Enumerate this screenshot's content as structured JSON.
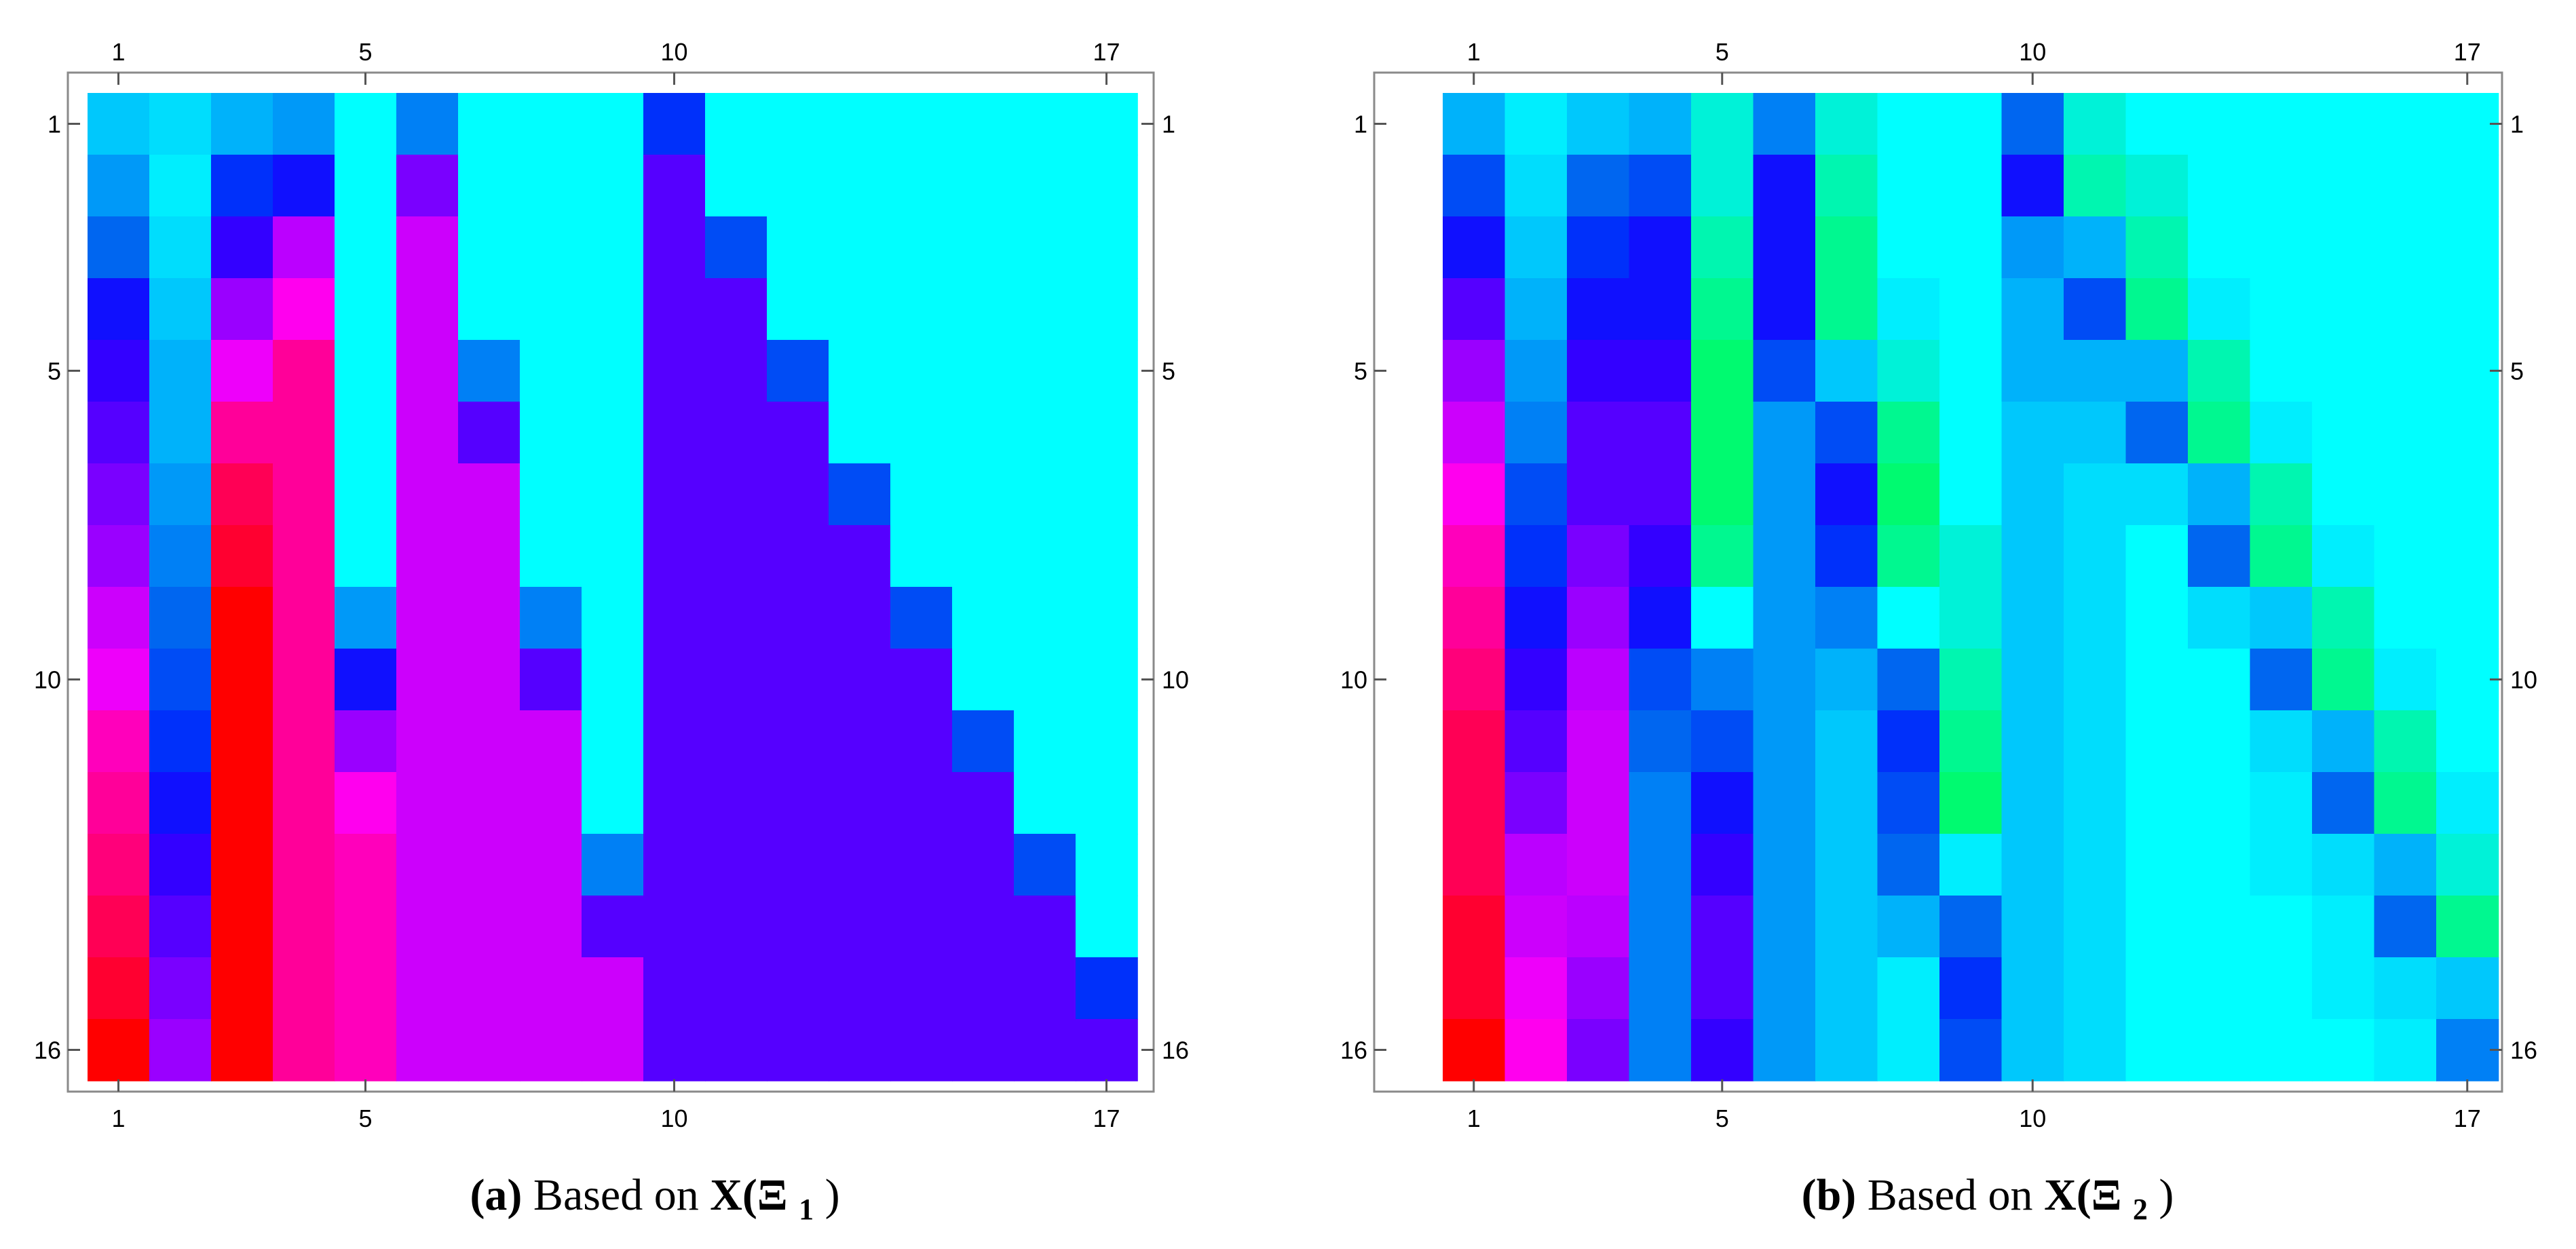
{
  "palette": [
    "#00ffff",
    "#00eefe",
    "#00ddfd",
    "#00c8fc",
    "#00b2fa",
    "#0099f8",
    "#0080f5",
    "#0066f0",
    "#004cf5",
    "#0030fa",
    "#1010fe",
    "#3300ff",
    "#5500ff",
    "#7a00ff",
    "#9a00ff",
    "#bb00ff",
    "#cc00fc",
    "#ee00fa",
    "#ff00ee",
    "#ff00bb",
    "#ff0099",
    "#ff007a",
    "#ff0055",
    "#ff0030",
    "#ff0000",
    "#00f2d8",
    "#00f6b0",
    "#00f890",
    "#00fa70"
  ],
  "chart_data": [
    {
      "type": "heatmap",
      "caption_label": "(a)",
      "caption_text": "Based on ",
      "caption_math": "X(Ξ",
      "caption_sub": "1",
      "caption_close": ")",
      "x_ticks": [
        "1",
        "5",
        "10",
        "17"
      ],
      "y_ticks": [
        "1",
        "5",
        "10",
        "16"
      ],
      "n_cols": 17,
      "n_rows": 16,
      "cells": [
        [
          3,
          2,
          4,
          5,
          0,
          6,
          0,
          0,
          0,
          9,
          0,
          0,
          0,
          0,
          0,
          0,
          0
        ],
        [
          5,
          1,
          9,
          10,
          0,
          13,
          0,
          0,
          0,
          12,
          0,
          0,
          0,
          0,
          0,
          0,
          0
        ],
        [
          7,
          2,
          11,
          15,
          0,
          16,
          0,
          0,
          0,
          12,
          8,
          0,
          0,
          0,
          0,
          0,
          0
        ],
        [
          10,
          3,
          14,
          18,
          0,
          16,
          0,
          0,
          0,
          12,
          12,
          0,
          0,
          0,
          0,
          0,
          0
        ],
        [
          11,
          4,
          17,
          20,
          0,
          16,
          6,
          0,
          0,
          12,
          12,
          8,
          0,
          0,
          0,
          0,
          0
        ],
        [
          12,
          4,
          20,
          20,
          0,
          16,
          12,
          0,
          0,
          12,
          12,
          12,
          0,
          0,
          0,
          0,
          0
        ],
        [
          13,
          5,
          22,
          20,
          0,
          16,
          16,
          0,
          0,
          12,
          12,
          12,
          8,
          0,
          0,
          0,
          0
        ],
        [
          14,
          6,
          23,
          20,
          0,
          16,
          16,
          0,
          0,
          12,
          12,
          12,
          12,
          0,
          0,
          0,
          0
        ],
        [
          16,
          7,
          24,
          20,
          5,
          16,
          16,
          6,
          0,
          12,
          12,
          12,
          12,
          8,
          0,
          0,
          0
        ],
        [
          17,
          8,
          24,
          20,
          10,
          16,
          16,
          12,
          0,
          12,
          12,
          12,
          12,
          12,
          0,
          0,
          0
        ],
        [
          19,
          9,
          24,
          20,
          14,
          16,
          16,
          16,
          0,
          12,
          12,
          12,
          12,
          12,
          8,
          0,
          0
        ],
        [
          20,
          10,
          24,
          20,
          18,
          16,
          16,
          16,
          0,
          12,
          12,
          12,
          12,
          12,
          12,
          0,
          0
        ],
        [
          21,
          11,
          24,
          20,
          19,
          16,
          16,
          16,
          6,
          12,
          12,
          12,
          12,
          12,
          12,
          8,
          0
        ],
        [
          22,
          12,
          24,
          20,
          19,
          16,
          16,
          16,
          12,
          12,
          12,
          12,
          12,
          12,
          12,
          12,
          0
        ],
        [
          23,
          13,
          24,
          20,
          19,
          16,
          16,
          16,
          16,
          12,
          12,
          12,
          12,
          12,
          12,
          12,
          9
        ],
        [
          24,
          14,
          24,
          20,
          19,
          16,
          16,
          16,
          16,
          12,
          12,
          12,
          12,
          12,
          12,
          12,
          12
        ]
      ]
    },
    {
      "type": "heatmap",
      "caption_label": "(b)",
      "caption_text": "Based on ",
      "caption_math": "X(Ξ",
      "caption_sub": "2",
      "caption_close": ")",
      "x_ticks": [
        "1",
        "5",
        "10",
        "17"
      ],
      "y_ticks": [
        "1",
        "5",
        "10",
        "16"
      ],
      "n_cols": 17,
      "n_rows": 16,
      "cells": [
        [
          4,
          1,
          3,
          4,
          25,
          6,
          25,
          0,
          0,
          7,
          25,
          0,
          0,
          0,
          0,
          0,
          0
        ],
        [
          8,
          2,
          7,
          8,
          25,
          10,
          26,
          0,
          0,
          10,
          26,
          25,
          0,
          0,
          0,
          0,
          0
        ],
        [
          10,
          3,
          9,
          10,
          26,
          10,
          27,
          0,
          0,
          5,
          4,
          26,
          0,
          0,
          0,
          0,
          0
        ],
        [
          12,
          4,
          10,
          10,
          27,
          10,
          27,
          1,
          0,
          4,
          8,
          27,
          1,
          0,
          0,
          0,
          0
        ],
        [
          14,
          5,
          11,
          11,
          28,
          8,
          3,
          25,
          0,
          4,
          4,
          4,
          26,
          0,
          0,
          0,
          0
        ],
        [
          16,
          6,
          12,
          12,
          28,
          5,
          8,
          27,
          0,
          3,
          3,
          7,
          27,
          1,
          0,
          0,
          0
        ],
        [
          18,
          8,
          12,
          12,
          28,
          5,
          10,
          28,
          0,
          3,
          2,
          2,
          4,
          26,
          0,
          0,
          0
        ],
        [
          19,
          9,
          13,
          11,
          27,
          5,
          9,
          27,
          25,
          3,
          2,
          0,
          7,
          27,
          1,
          0,
          0
        ],
        [
          20,
          10,
          14,
          10,
          0,
          5,
          6,
          0,
          25,
          3,
          2,
          0,
          2,
          3,
          26,
          0,
          0
        ],
        [
          21,
          11,
          15,
          8,
          6,
          5,
          4,
          7,
          26,
          3,
          2,
          0,
          0,
          7,
          27,
          1,
          0
        ],
        [
          22,
          12,
          16,
          7,
          8,
          5,
          3,
          9,
          27,
          3,
          2,
          0,
          0,
          2,
          4,
          26,
          0
        ],
        [
          22,
          13,
          16,
          6,
          10,
          5,
          3,
          8,
          28,
          3,
          2,
          0,
          0,
          1,
          7,
          27,
          1
        ],
        [
          22,
          15,
          16,
          6,
          11,
          5,
          3,
          7,
          1,
          3,
          2,
          0,
          0,
          1,
          2,
          4,
          25
        ],
        [
          23,
          16,
          15,
          6,
          12,
          5,
          3,
          4,
          7,
          3,
          2,
          0,
          0,
          0,
          1,
          7,
          27
        ],
        [
          23,
          17,
          14,
          6,
          12,
          5,
          3,
          1,
          9,
          3,
          2,
          0,
          0,
          0,
          1,
          2,
          3
        ],
        [
          24,
          18,
          13,
          6,
          11,
          5,
          3,
          1,
          8,
          3,
          2,
          0,
          0,
          0,
          0,
          1,
          6
        ]
      ]
    }
  ]
}
